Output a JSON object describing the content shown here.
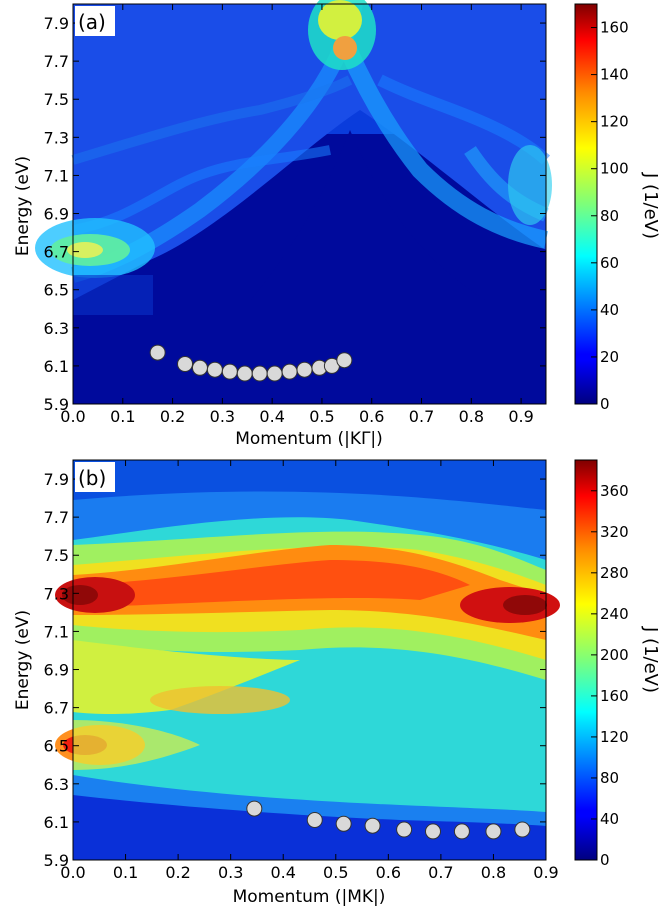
{
  "chart_data": [
    {
      "type": "heatmap",
      "panel_label": "(a)",
      "xlabel": "Momentum (|KΓ|)",
      "ylabel": "Energy (eV)",
      "colorbar_label": "J (1/eV)",
      "xlim": [
        0.0,
        0.95
      ],
      "ylim": [
        5.9,
        8.0
      ],
      "xticks": [
        "0.0",
        "0.1",
        "0.2",
        "0.3",
        "0.4",
        "0.5",
        "0.6",
        "0.7",
        "0.8",
        "0.9"
      ],
      "yticks": [
        "5.9",
        "6.1",
        "6.3",
        "6.5",
        "6.7",
        "6.9",
        "7.1",
        "7.3",
        "7.5",
        "7.7",
        "7.9"
      ],
      "clim": [
        0,
        170
      ],
      "cbar_ticks": [
        "0",
        "20",
        "40",
        "60",
        "80",
        "100",
        "120",
        "140",
        "160"
      ],
      "colormap": "jet",
      "points": {
        "x": [
          0.17,
          0.225,
          0.255,
          0.285,
          0.315,
          0.345,
          0.375,
          0.405,
          0.435,
          0.465,
          0.495,
          0.52,
          0.545
        ],
        "y": [
          6.17,
          6.11,
          6.09,
          6.08,
          6.07,
          6.06,
          6.06,
          6.06,
          6.07,
          6.08,
          6.09,
          6.1,
          6.13
        ]
      }
    },
    {
      "type": "heatmap",
      "panel_label": "(b)",
      "xlabel": "Momentum (|MK|)",
      "ylabel": "Energy (eV)",
      "colorbar_label": "J (1/eV)",
      "xlim": [
        0.0,
        0.9
      ],
      "ylim": [
        5.9,
        8.0
      ],
      "xticks": [
        "0.0",
        "0.1",
        "0.2",
        "0.3",
        "0.4",
        "0.5",
        "0.6",
        "0.7",
        "0.8",
        "0.9"
      ],
      "yticks": [
        "5.9",
        "6.1",
        "6.3",
        "6.5",
        "6.7",
        "6.9",
        "7.1",
        "7.3",
        "7.5",
        "7.7",
        "7.9"
      ],
      "clim": [
        0,
        390
      ],
      "cbar_ticks": [
        "0",
        "40",
        "80",
        "120",
        "160",
        "200",
        "240",
        "280",
        "320",
        "360"
      ],
      "colormap": "jet",
      "points": {
        "x": [
          0.345,
          0.46,
          0.515,
          0.57,
          0.63,
          0.685,
          0.74,
          0.8,
          0.855
        ],
        "y": [
          6.17,
          6.11,
          6.09,
          6.08,
          6.06,
          6.05,
          6.05,
          6.05,
          6.06
        ]
      }
    }
  ]
}
